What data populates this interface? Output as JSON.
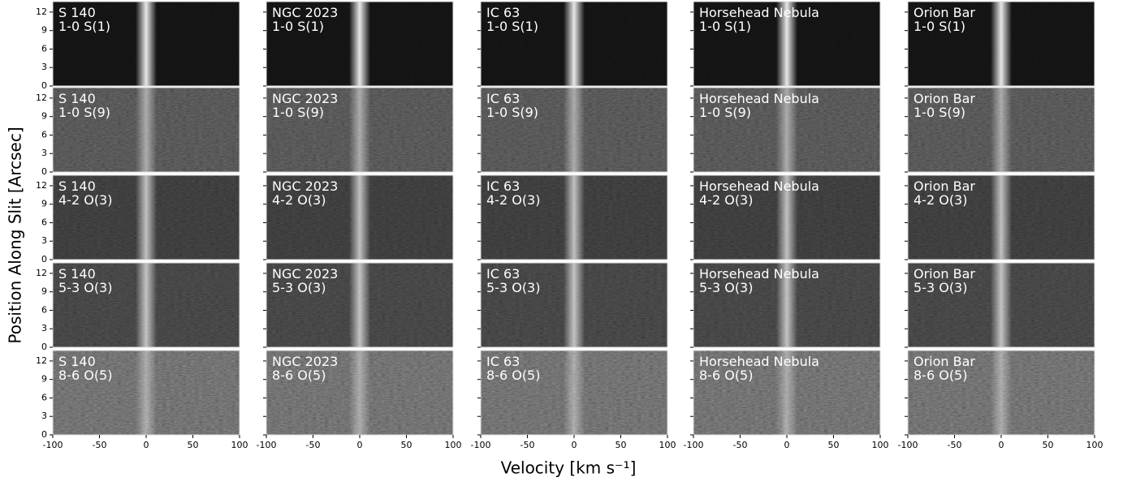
{
  "chart_data": {
    "type": "image_grid",
    "xlabel": "Velocity [km s⁻¹]",
    "ylabel": "Position Along Slit [Arcsec]",
    "sources": [
      "S 140",
      "NGC 2023",
      "IC 63",
      "Horsehead Nebula",
      "Orion Bar"
    ],
    "lines": [
      "1-0 S(1)",
      "1-0 S(9)",
      "4-2 O(3)",
      "5-3 O(3)",
      "8-6 O(5)"
    ],
    "xlim": [
      -100,
      100
    ],
    "xticks": [
      -100,
      -50,
      0,
      50,
      100
    ],
    "ylim": [
      0,
      13.7
    ],
    "yticks": [
      0,
      3,
      6,
      9,
      12
    ]
  }
}
